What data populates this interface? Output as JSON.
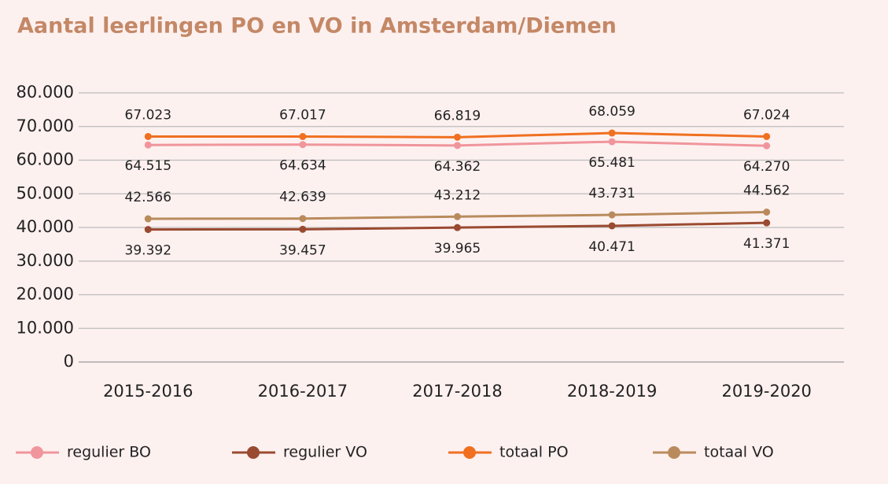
{
  "chart_data": {
    "type": "line",
    "title": "Aantal leerlingen PO en VO in Amsterdam/Diemen",
    "categories": [
      "2015-2016",
      "2016-2017",
      "2017-2018",
      "2018-2019",
      "2019-2020"
    ],
    "series": [
      {
        "name": "regulier BO",
        "color": "#f0959c",
        "values": [
          64515,
          64634,
          64362,
          65481,
          64270
        ],
        "value_labels": [
          "64.515",
          "64.634",
          "64.362",
          "65.481",
          "64.270"
        ]
      },
      {
        "name": "regulier VO",
        "color": "#9a4a30",
        "values": [
          39392,
          39457,
          39965,
          40471,
          41371
        ],
        "value_labels": [
          "39.392",
          "39.457",
          "39.965",
          "40.471",
          "41.371"
        ]
      },
      {
        "name": "totaal PO",
        "color": "#f07020",
        "values": [
          67023,
          67017,
          66819,
          68059,
          67024
        ],
        "value_labels": [
          "67.023",
          "67.017",
          "66.819",
          "68.059",
          "67.024"
        ]
      },
      {
        "name": "totaal VO",
        "color": "#b98b5c",
        "values": [
          42566,
          42639,
          43212,
          43731,
          44562
        ],
        "value_labels": [
          "42.566",
          "42.639",
          "43.212",
          "43.731",
          "44.562"
        ]
      }
    ],
    "ylim": [
      0,
      80000
    ],
    "yticks": [
      0,
      {
        "value": 10000,
        "label": "10.000"
      },
      {
        "value": 20000,
        "label": "20.000"
      },
      {
        "value": 30000,
        "label": "30.000"
      },
      {
        "value": 40000,
        "label": "40.000"
      },
      {
        "value": 50000,
        "label": "50.000"
      },
      {
        "value": 60000,
        "label": "60.000"
      },
      {
        "value": 70000,
        "label": "70.000"
      },
      {
        "value": 80000,
        "label": "80.000"
      }
    ],
    "grid": true,
    "legend": "bottom"
  }
}
